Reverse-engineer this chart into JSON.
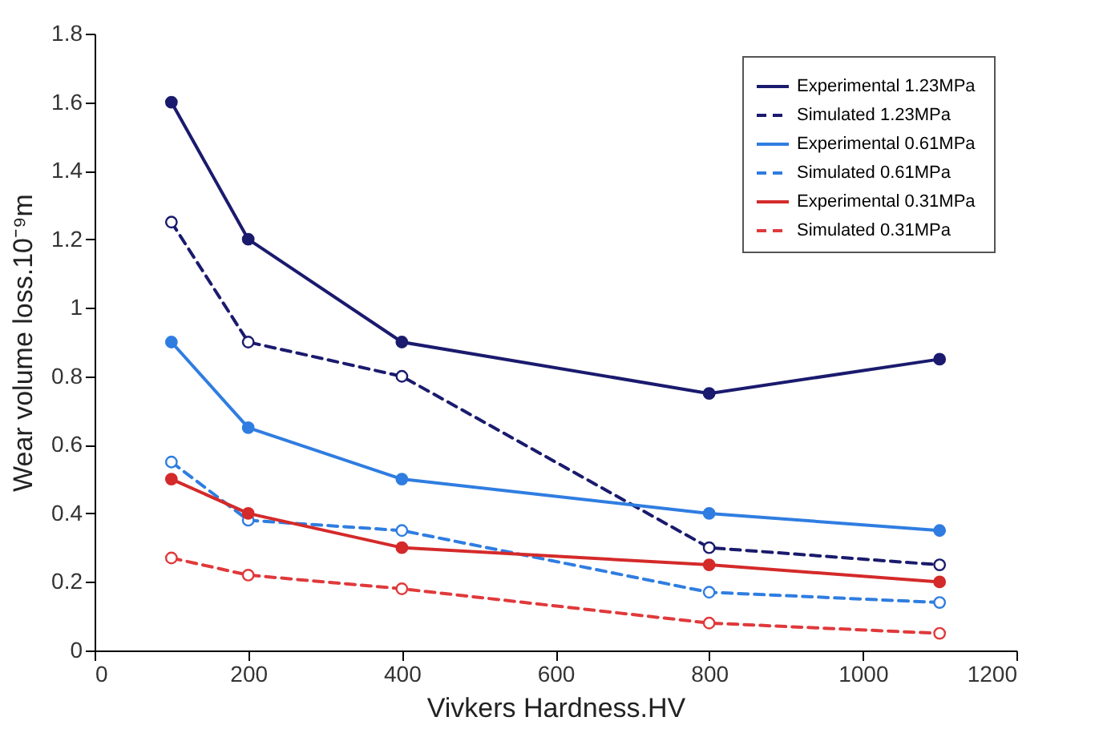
{
  "chart_data": {
    "type": "line",
    "xlabel": "Vivkers Hardness.HV",
    "ylabel": "Wear volume loss.10⁻⁹m",
    "x": [
      100,
      200,
      400,
      800,
      1100
    ],
    "series": [
      {
        "name": "Experimental 1.23MPa",
        "color": "#1a1a6e",
        "line_style": "solid",
        "values": [
          1.6,
          1.2,
          0.9,
          0.75,
          0.85
        ]
      },
      {
        "name": "Simulated 1.23MPa",
        "color": "#1a1a6e",
        "line_style": "dashed",
        "values": [
          1.25,
          0.9,
          0.8,
          0.3,
          0.25
        ]
      },
      {
        "name": "Experimental  0.61MPa",
        "color": "#2f7de1",
        "line_style": "solid",
        "values": [
          0.9,
          0.65,
          0.5,
          0.4,
          0.35
        ]
      },
      {
        "name": "Simulated  0.61MPa",
        "color": "#2f7de1",
        "line_style": "dashed",
        "values": [
          0.55,
          0.38,
          0.35,
          0.17,
          0.14
        ]
      },
      {
        "name": "Experimental  0.31MPa",
        "color": "#d42a2a",
        "line_style": "solid",
        "values": [
          0.5,
          0.4,
          0.3,
          0.25,
          0.2
        ]
      },
      {
        "name": "Simulated  0.31MPa",
        "color": "#e0393b",
        "line_style": "dashed",
        "values": [
          0.27,
          0.22,
          0.18,
          0.08,
          0.05
        ]
      }
    ],
    "xlim": [
      0,
      1200
    ],
    "xticks": [
      0,
      200,
      400,
      600,
      800,
      1000,
      1200
    ],
    "ylim": [
      0,
      1.8
    ],
    "yticks": [
      0,
      0.2,
      0.4,
      0.6,
      0.8,
      1,
      1.2,
      1.4,
      1.6,
      1.8
    ],
    "grid": false,
    "legend": "top right",
    "marker": "circle"
  }
}
